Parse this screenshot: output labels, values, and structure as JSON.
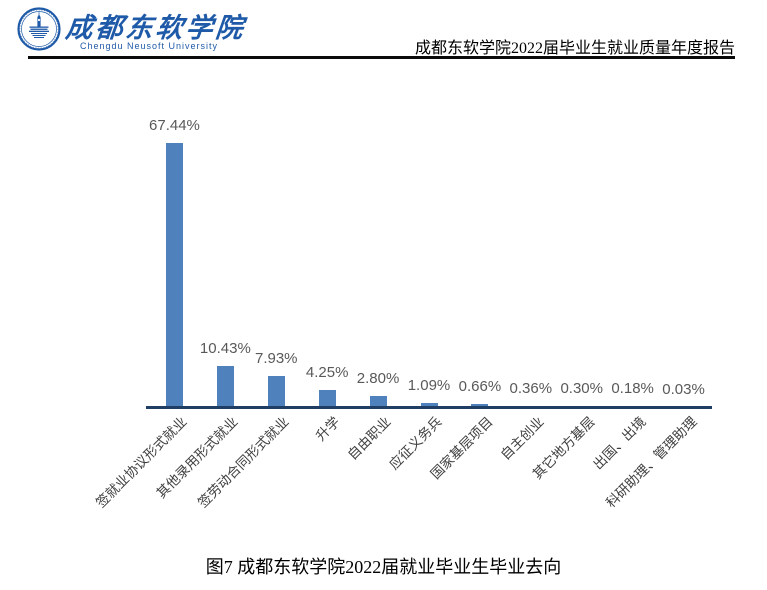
{
  "header": {
    "school_name_zh": "成都东软学院",
    "school_name_en": "Chengdu Neusoft University",
    "report_title": "成都东软学院2022届毕业生就业质量年度报告",
    "brand_color": "#1E5AA8",
    "emblem_icon": "university-emblem"
  },
  "chart_data": {
    "type": "bar",
    "title": "",
    "xlabel": "",
    "ylabel": "",
    "categories": [
      "签就业协议形式就业",
      "其他录用形式就业",
      "签劳动合同形式就业",
      "升学",
      "自由职业",
      "应征义务兵",
      "国家基层项目",
      "自主创业",
      "其它地方基层",
      "出国、出境",
      "科研助理、管理助理"
    ],
    "values": [
      67.44,
      10.43,
      7.93,
      4.25,
      2.8,
      1.09,
      0.66,
      0.36,
      0.3,
      0.18,
      0.03
    ],
    "labels": [
      "67.44%",
      "10.43%",
      "7.93%",
      "4.25%",
      "2.80%",
      "1.09%",
      "0.66%",
      "0.36%",
      "0.30%",
      "0.18%",
      "0.03%"
    ],
    "ylim": [
      0,
      70
    ],
    "grid": false,
    "legend": false,
    "bar_color": "#4F81BD",
    "axis_color": "#203E63",
    "value_label_color": "#595959",
    "category_label_color": "#3F3F3F"
  },
  "caption": "图7  成都东软学院2022届就业毕业生毕业去向"
}
